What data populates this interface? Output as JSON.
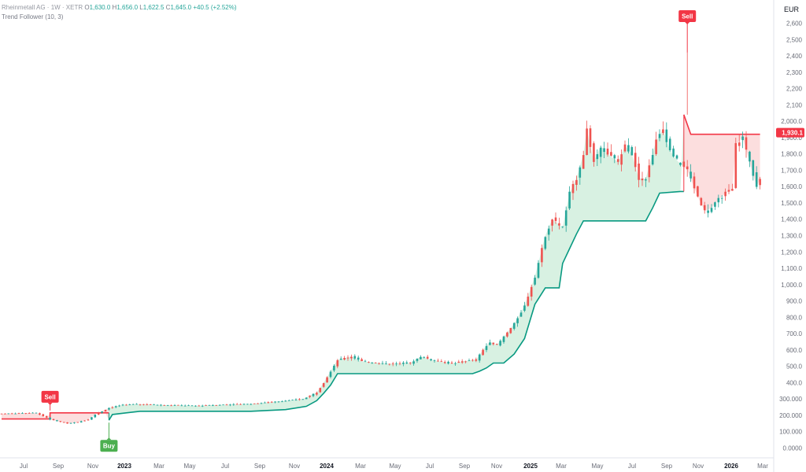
{
  "legend": {
    "symbol": "Rheinmetall AG · 1W · XETR",
    "open_key": "O",
    "open": "1,630.0",
    "high_key": "H",
    "high": "1,656.0",
    "low_key": "L",
    "low": "1,622.5",
    "close_key": "C",
    "close": "1,645.0",
    "change": "+40.5 (+2.52%)",
    "indicator": "Trend Follower (10, 3)"
  },
  "colors": {
    "up": "#26a69a",
    "down": "#ef5350",
    "trend_up_line": "#089981",
    "trend_down_line": "#f23645",
    "fill_up": "#d4f0df",
    "fill_down": "#fcdada",
    "buy": "#4caf50",
    "sell": "#f23645",
    "axis_text": "#6a6d78"
  },
  "chart_data": {
    "type": "candlestick",
    "currency": "EUR",
    "ylim": [
      0,
      2700
    ],
    "y_ticks": [
      {
        "v": 0,
        "t": "0.0000"
      },
      {
        "v": 100,
        "t": "100.000"
      },
      {
        "v": 200,
        "t": "200.000"
      },
      {
        "v": 300,
        "t": "300.000"
      },
      {
        "v": 400,
        "t": "400.0"
      },
      {
        "v": 500,
        "t": "500.0"
      },
      {
        "v": 600,
        "t": "600.0"
      },
      {
        "v": 700,
        "t": "700.0"
      },
      {
        "v": 800,
        "t": "800.0"
      },
      {
        "v": 900,
        "t": "900.0"
      },
      {
        "v": 1000,
        "t": "1,000.0"
      },
      {
        "v": 1100,
        "t": "1,100.0"
      },
      {
        "v": 1200,
        "t": "1,200.0"
      },
      {
        "v": 1300,
        "t": "1,300.0"
      },
      {
        "v": 1400,
        "t": "1,400.0"
      },
      {
        "v": 1500,
        "t": "1,500.0"
      },
      {
        "v": 1600,
        "t": "1,600.0"
      },
      {
        "v": 1700,
        "t": "1,700.0"
      },
      {
        "v": 1800,
        "t": "1,800.0"
      },
      {
        "v": 1900,
        "t": "1,900.0"
      },
      {
        "v": 2000,
        "t": "2,000.0"
      },
      {
        "v": 2100,
        "t": "2,100"
      },
      {
        "v": 2200,
        "t": "2,200"
      },
      {
        "v": 2300,
        "t": "2,300"
      },
      {
        "v": 2400,
        "t": "2,400"
      },
      {
        "v": 2500,
        "t": "2,500"
      },
      {
        "v": 2600,
        "t": "2,600"
      }
    ],
    "x_ticks": [
      "Jul",
      "Sep",
      "Nov",
      "2023",
      "Mar",
      "May",
      "Jul",
      "Sep",
      "Nov",
      "2024",
      "Mar",
      "May",
      "Jul",
      "Sep",
      "Nov",
      "2025",
      "Mar",
      "May",
      "Jul",
      "Sep",
      "Nov",
      "2026",
      "Mar"
    ],
    "current_price": "1,930.1",
    "current_price_value": 1930,
    "price_anchors": [
      [
        0,
        210
      ],
      [
        10,
        215
      ],
      [
        14,
        175
      ],
      [
        17,
        160
      ],
      [
        19,
        150
      ],
      [
        22,
        158
      ],
      [
        25,
        175
      ],
      [
        27,
        205
      ],
      [
        31,
        245
      ],
      [
        35,
        265
      ],
      [
        40,
        268
      ],
      [
        48,
        262
      ],
      [
        56,
        258
      ],
      [
        64,
        265
      ],
      [
        72,
        270
      ],
      [
        80,
        285
      ],
      [
        87,
        300
      ],
      [
        91,
        340
      ],
      [
        93,
        400
      ],
      [
        95,
        470
      ],
      [
        97,
        540
      ],
      [
        101,
        560
      ],
      [
        104,
        530
      ],
      [
        112,
        515
      ],
      [
        118,
        520
      ],
      [
        121,
        560
      ],
      [
        124,
        540
      ],
      [
        130,
        515
      ],
      [
        133,
        530
      ],
      [
        137,
        540
      ],
      [
        139,
        600
      ],
      [
        141,
        650
      ],
      [
        143,
        630
      ],
      [
        145,
        680
      ],
      [
        148,
        760
      ],
      [
        151,
        870
      ],
      [
        154,
        1050
      ],
      [
        157,
        1300
      ],
      [
        159,
        1400
      ],
      [
        162,
        1350
      ],
      [
        164,
        1560
      ],
      [
        166,
        1650
      ],
      [
        168,
        1800
      ],
      [
        169,
        1950
      ],
      [
        171,
        1750
      ],
      [
        173,
        1850
      ],
      [
        175,
        1800
      ],
      [
        178,
        1750
      ],
      [
        180,
        1850
      ],
      [
        182,
        1800
      ],
      [
        184,
        1650
      ],
      [
        186,
        1650
      ],
      [
        189,
        1880
      ],
      [
        191,
        1950
      ],
      [
        193,
        1820
      ],
      [
        195,
        1760
      ],
      [
        198,
        1700
      ],
      [
        201,
        1540
      ],
      [
        203,
        1450
      ],
      [
        205,
        1470
      ],
      [
        207,
        1520
      ],
      [
        209,
        1560
      ],
      [
        211,
        1580
      ],
      [
        212,
        1860
      ],
      [
        214,
        1900
      ],
      [
        216,
        1750
      ],
      [
        218,
        1600
      ],
      [
        219,
        1645
      ]
    ],
    "trend_segments": [
      {
        "dir": "down",
        "pts": [
          [
            0,
            178
          ],
          [
            14,
            178
          ],
          [
            14,
            215
          ],
          [
            31,
            215
          ]
        ]
      },
      {
        "dir": "up",
        "pts": [
          [
            31,
            170
          ],
          [
            32,
            205
          ],
          [
            36,
            215
          ],
          [
            40,
            225
          ],
          [
            48,
            225
          ],
          [
            56,
            225
          ],
          [
            64,
            225
          ],
          [
            72,
            225
          ],
          [
            82,
            235
          ],
          [
            88,
            255
          ],
          [
            91,
            290
          ],
          [
            93,
            335
          ],
          [
            95,
            385
          ],
          [
            97,
            455
          ],
          [
            136,
            455
          ],
          [
            138,
            470
          ],
          [
            140,
            490
          ],
          [
            142,
            520
          ],
          [
            145,
            520
          ],
          [
            148,
            575
          ],
          [
            151,
            670
          ],
          [
            154,
            880
          ],
          [
            157,
            980
          ],
          [
            161,
            980
          ],
          [
            162,
            1130
          ],
          [
            164,
            1220
          ],
          [
            166,
            1310
          ],
          [
            168,
            1390
          ],
          [
            186,
            1390
          ],
          [
            188,
            1470
          ],
          [
            190,
            1560
          ],
          [
            196,
            1570
          ],
          [
            197,
            1570
          ]
        ]
      },
      {
        "dir": "down",
        "pts": [
          [
            197,
            2040
          ],
          [
            199,
            1920
          ],
          [
            219,
            1920
          ]
        ]
      }
    ],
    "signals": [
      {
        "type": "Sell",
        "bar": 14,
        "price": 215
      },
      {
        "type": "Buy",
        "bar": 31,
        "price": 170
      },
      {
        "type": "Sell",
        "bar": 198,
        "price": 2420
      }
    ]
  }
}
